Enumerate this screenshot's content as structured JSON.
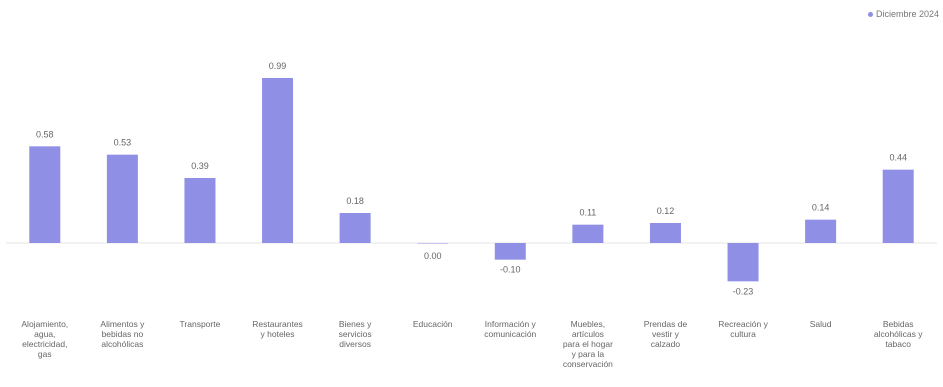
{
  "header": {
    "title": ""
  },
  "legend": {
    "label": "Diciembre 2024",
    "color": "#8f8fe6"
  },
  "chart_data": {
    "type": "bar",
    "categories": [
      "Alojamiento, agua, electricidad, gas",
      "Alimentos y bebidas no alcohólicas",
      "Transporte",
      "Restaurantes y hoteles",
      "Bienes y servicios diversos",
      "Educación",
      "Información y comunicación",
      "Muebles, artículos para el hogar y para la conservación",
      "Prendas de vestir y calzado",
      "Recreación y cultura",
      "Salud",
      "Bebidas alcohólicas y tabaco"
    ],
    "series": [
      {
        "name": "Diciembre 2024",
        "values": [
          0.58,
          0.53,
          0.39,
          0.99,
          0.18,
          0.0,
          -0.1,
          0.11,
          0.12,
          -0.23,
          0.14,
          0.44
        ]
      }
    ],
    "value_labels": [
      "0.58",
      "0.53",
      "0.39",
      "0.99",
      "0.18",
      "0.00",
      "-0.10",
      "0.11",
      "0.12",
      "-0.23",
      "0.14",
      "0.44"
    ],
    "ylim": [
      -0.3,
      1.1
    ],
    "grid": false,
    "legend_position": "top-right",
    "bar_color": "#8f8fe6",
    "xlabel": "",
    "ylabel": ""
  }
}
